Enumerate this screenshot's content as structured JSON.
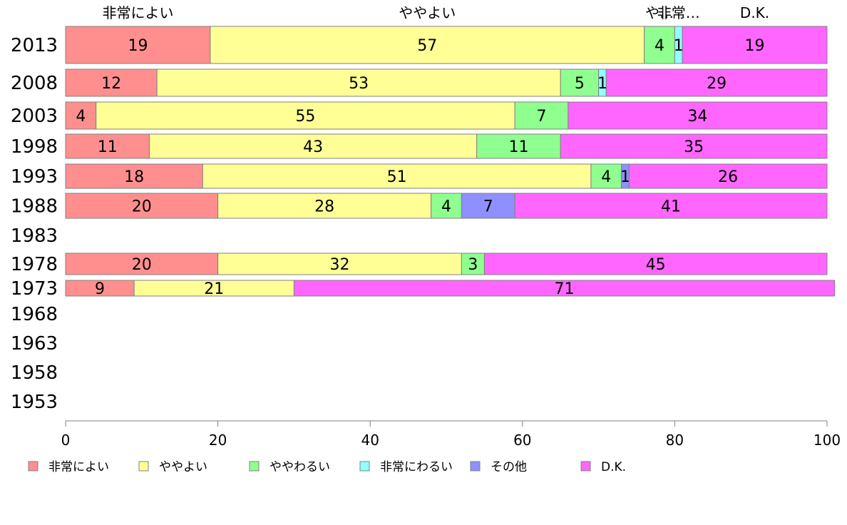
{
  "chart_data": {
    "type": "bar",
    "orientation": "horizontal",
    "stacked": true,
    "categories": [
      "2013",
      "2008",
      "2003",
      "1998",
      "1993",
      "1988",
      "1983",
      "1978",
      "1973",
      "1968",
      "1963",
      "1958",
      "1953"
    ],
    "series": [
      {
        "name": "非常によい",
        "color": "#ff8f8f",
        "values": [
          19,
          12,
          4,
          11,
          18,
          20,
          null,
          20,
          9,
          null,
          null,
          null,
          null
        ]
      },
      {
        "name": "ややよい",
        "color": "#ffff96",
        "values": [
          57,
          53,
          55,
          43,
          51,
          28,
          null,
          32,
          21,
          null,
          null,
          null,
          null
        ]
      },
      {
        "name": "ややわるい",
        "color": "#8fff8f",
        "values": [
          4,
          5,
          7,
          11,
          4,
          4,
          null,
          3,
          null,
          null,
          null,
          null,
          null
        ]
      },
      {
        "name": "非常にわるい",
        "color": "#8fffff",
        "values": [
          1,
          1,
          null,
          null,
          null,
          null,
          null,
          null,
          null,
          null,
          null,
          null,
          null
        ]
      },
      {
        "name": "その他",
        "color": "#8f8fff",
        "values": [
          null,
          null,
          null,
          null,
          1,
          7,
          null,
          null,
          null,
          null,
          null,
          null,
          null
        ]
      },
      {
        "name": "D.K.",
        "color": "#ff66ff",
        "values": [
          19,
          29,
          34,
          35,
          26,
          41,
          null,
          45,
          71,
          null,
          null,
          null,
          null
        ]
      }
    ],
    "xlim": [
      0,
      100
    ],
    "xticks": [
      0,
      20,
      40,
      60,
      80,
      100
    ],
    "top_labels": [
      "非常によい",
      "ややよい",
      "や…",
      "非常…",
      "D.K."
    ],
    "legend_position": "bottom",
    "grid": false
  }
}
